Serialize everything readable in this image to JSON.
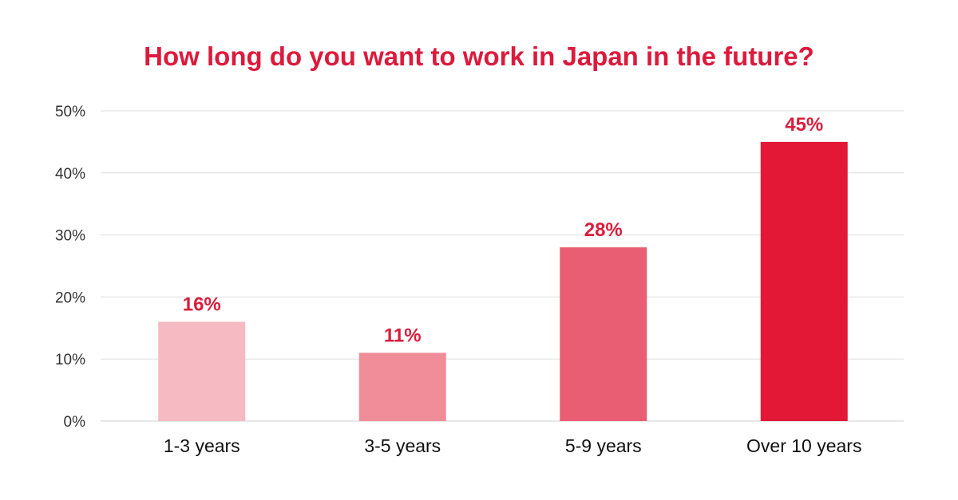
{
  "chart_data": {
    "type": "bar",
    "title": "How long do you want to work in Japan in the future?",
    "categories": [
      "1-3 years",
      "3-5 years",
      "5-9 years",
      "Over 10 years"
    ],
    "values": [
      16,
      11,
      28,
      45
    ],
    "data_labels": [
      "16%",
      "11%",
      "28%",
      "45%"
    ],
    "bar_colors": [
      "#f6bac2",
      "#f08d99",
      "#e95e72",
      "#e31837"
    ],
    "yticks": [
      0,
      10,
      20,
      30,
      40,
      50
    ],
    "ytick_labels": [
      "0%",
      "10%",
      "20%",
      "30%",
      "40%",
      "50%"
    ],
    "ylim": [
      0,
      50
    ],
    "grid": true,
    "legend": "none"
  },
  "colors": {
    "title": "#dc1a3c",
    "data_label": "#d81e3c",
    "grid": "#dddddd"
  }
}
